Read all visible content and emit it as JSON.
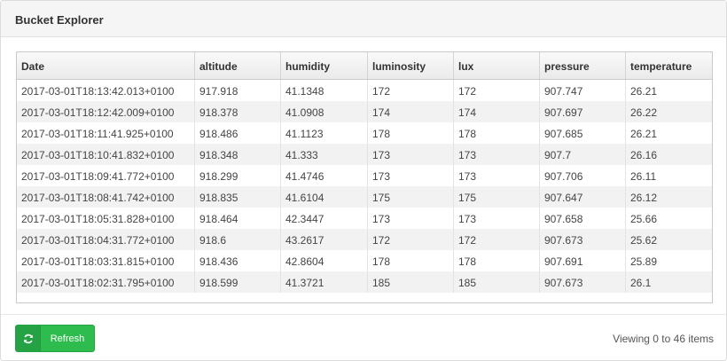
{
  "panel": {
    "title": "Bucket Explorer"
  },
  "table": {
    "columns": [
      "Date",
      "altitude",
      "humidity",
      "luminosity",
      "lux",
      "pressure",
      "temperature"
    ],
    "rows": [
      [
        "2017-03-01T18:13:42.013+0100",
        "917.918",
        "41.1348",
        "172",
        "172",
        "907.747",
        "26.21"
      ],
      [
        "2017-03-01T18:12:42.009+0100",
        "918.378",
        "41.0908",
        "174",
        "174",
        "907.697",
        "26.22"
      ],
      [
        "2017-03-01T18:11:41.925+0100",
        "918.486",
        "41.1123",
        "178",
        "178",
        "907.685",
        "26.21"
      ],
      [
        "2017-03-01T18:10:41.832+0100",
        "918.348",
        "41.333",
        "173",
        "173",
        "907.7",
        "26.16"
      ],
      [
        "2017-03-01T18:09:41.772+0100",
        "918.299",
        "41.4746",
        "173",
        "173",
        "907.706",
        "26.11"
      ],
      [
        "2017-03-01T18:08:41.742+0100",
        "918.835",
        "41.6104",
        "175",
        "175",
        "907.647",
        "26.12"
      ],
      [
        "2017-03-01T18:05:31.828+0100",
        "918.464",
        "42.3447",
        "173",
        "173",
        "907.658",
        "25.66"
      ],
      [
        "2017-03-01T18:04:31.772+0100",
        "918.6",
        "43.2617",
        "172",
        "172",
        "907.673",
        "25.62"
      ],
      [
        "2017-03-01T18:03:31.815+0100",
        "918.436",
        "42.8604",
        "178",
        "178",
        "907.691",
        "25.89"
      ],
      [
        "2017-03-01T18:02:31.795+0100",
        "918.599",
        "41.3721",
        "185",
        "185",
        "907.673",
        "26.1"
      ]
    ]
  },
  "footer": {
    "refresh_label": "Refresh",
    "refresh_icon": "refresh-icon",
    "viewing_text": "Viewing 0 to 46 items"
  },
  "colors": {
    "button_green": "#2ebc4f",
    "header_bg": "#f5f5f5"
  }
}
